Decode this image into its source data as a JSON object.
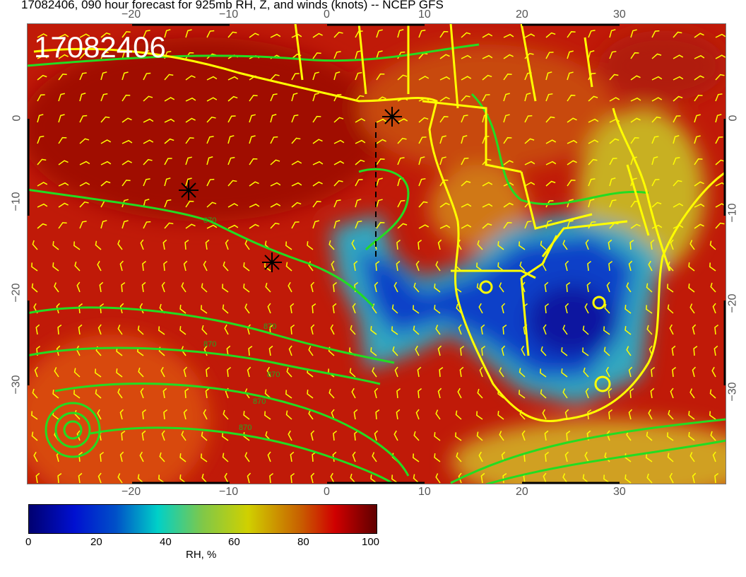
{
  "title": "17082406, 090 hour forecast for 925mb RH, Z, and winds (knots) -- NCEP GFS",
  "stamp": "17082406",
  "map": {
    "lon_ticks": [
      "−20",
      "−10",
      "0",
      "10",
      "20",
      "30"
    ],
    "lat_ticks": [
      "0",
      "−10",
      "−20",
      "−30"
    ],
    "contour_labels": [
      "870",
      "870",
      "870",
      "870",
      "870",
      "870"
    ],
    "colors": {
      "coast": "#ffff00",
      "contour": "#22dd22",
      "barb": "#ffff00",
      "dry": "#0030c0",
      "moist": "#b00000"
    },
    "markers": [
      "asterisk",
      "asterisk",
      "asterisk"
    ]
  },
  "colorbar": {
    "ticks": [
      "0",
      "20",
      "40",
      "60",
      "80",
      "100"
    ],
    "label": "RH, %",
    "range": [
      0,
      100
    ]
  }
}
